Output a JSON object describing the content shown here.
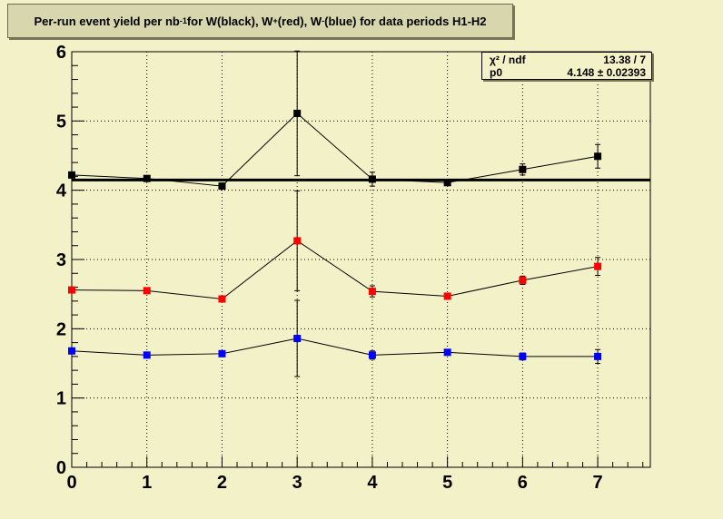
{
  "title": {
    "part1": "Per-run event yield per nb",
    "exp1": "-1",
    "part2": " for W(black), W",
    "exp2": "+",
    "part3": "(red), W",
    "exp3": "-",
    "part4": "(blue) for data periods H1-H2"
  },
  "stats": {
    "row1_label": "χ² / ndf",
    "row1_value": "13.38 / 7",
    "row2_label": "p0",
    "row2_value": "4.148 ± 0.02393"
  },
  "colors": {
    "background": "#f3f1c8",
    "black_series": "#000000",
    "red_series": "#ff0000",
    "blue_series": "#0000ff"
  },
  "chart_data": {
    "type": "scatter",
    "xlim": [
      0,
      7.7
    ],
    "ylim": [
      0,
      6
    ],
    "x_ticks": [
      "0",
      "1",
      "2",
      "3",
      "4",
      "5",
      "6",
      "7"
    ],
    "y_ticks": [
      "0",
      "1",
      "2",
      "3",
      "4",
      "5",
      "6"
    ],
    "grid": true,
    "fit_line": {
      "value": 4.148,
      "x_range": [
        0,
        7.7
      ]
    },
    "series": [
      {
        "color": "#000000",
        "x": [
          0,
          1,
          2,
          3,
          4,
          5,
          6,
          7
        ],
        "y": [
          4.22,
          4.17,
          4.06,
          5.11,
          4.16,
          4.11,
          4.3,
          4.49
        ],
        "err": [
          0.03,
          0.03,
          0.03,
          0.9,
          0.1,
          0.03,
          0.08,
          0.17
        ]
      },
      {
        "color": "#ff0000",
        "x": [
          0,
          1,
          2,
          3,
          4,
          5,
          6,
          7
        ],
        "y": [
          2.56,
          2.55,
          2.43,
          3.27,
          2.54,
          2.47,
          2.7,
          2.9
        ],
        "err": [
          0.03,
          0.03,
          0.03,
          0.72,
          0.08,
          0.03,
          0.06,
          0.13
        ]
      },
      {
        "color": "#0000ff",
        "x": [
          0,
          1,
          2,
          3,
          4,
          5,
          6,
          7
        ],
        "y": [
          1.68,
          1.62,
          1.64,
          1.86,
          1.62,
          1.66,
          1.6,
          1.6
        ],
        "err": [
          0.03,
          0.03,
          0.03,
          0.55,
          0.06,
          0.03,
          0.05,
          0.1
        ]
      }
    ]
  }
}
